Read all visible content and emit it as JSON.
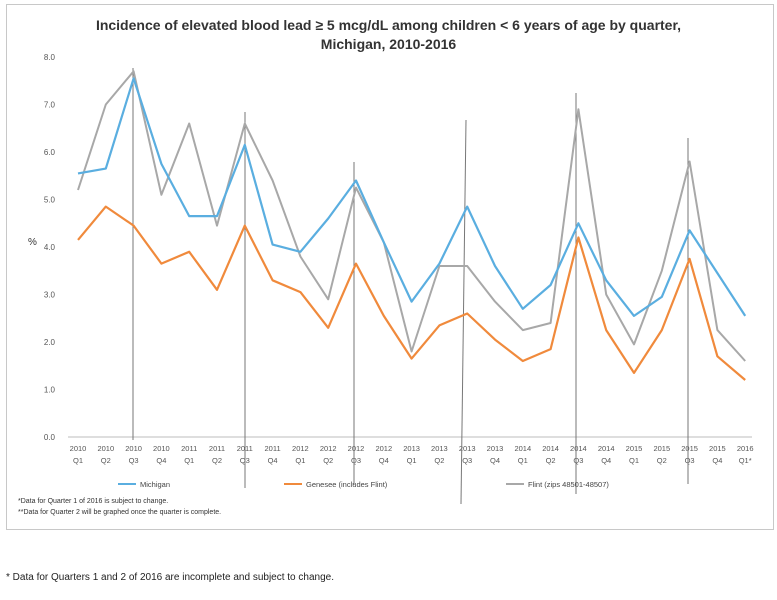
{
  "chart_data": {
    "type": "line",
    "title": "Incidence of elevated blood lead ≥ 5 mcg/dL among children < 6 years of age by quarter,",
    "subtitle": "Michigan, 2010-2016",
    "ylabel": "%",
    "xlabel": "",
    "ylim": [
      0,
      8
    ],
    "yticks": [
      "0.0",
      "1.0",
      "2.0",
      "3.0",
      "4.0",
      "5.0",
      "6.0",
      "7.0",
      "8.0"
    ],
    "grid": false,
    "legend_position": "bottom",
    "categories": [
      [
        "2010",
        "Q1"
      ],
      [
        "2010",
        "Q2"
      ],
      [
        "2010",
        "Q3"
      ],
      [
        "2010",
        "Q4"
      ],
      [
        "2011",
        "Q1"
      ],
      [
        "2011",
        "Q2"
      ],
      [
        "2011",
        "Q3"
      ],
      [
        "2011",
        "Q4"
      ],
      [
        "2012",
        "Q1"
      ],
      [
        "2012",
        "Q2"
      ],
      [
        "2012",
        "Q3"
      ],
      [
        "2012",
        "Q4"
      ],
      [
        "2013",
        "Q1"
      ],
      [
        "2013",
        "Q2"
      ],
      [
        "2013",
        "Q3"
      ],
      [
        "2013",
        "Q4"
      ],
      [
        "2014",
        "Q1"
      ],
      [
        "2014",
        "Q2"
      ],
      [
        "2014",
        "Q3"
      ],
      [
        "2014",
        "Q4"
      ],
      [
        "2015",
        "Q1"
      ],
      [
        "2015",
        "Q2"
      ],
      [
        "2015",
        "Q3"
      ],
      [
        "2015",
        "Q4"
      ],
      [
        "2016",
        "Q1*"
      ]
    ],
    "series": [
      {
        "name": "Michigan",
        "color": "#5aaee0",
        "values": [
          5.55,
          5.65,
          7.55,
          5.75,
          4.65,
          4.65,
          6.15,
          4.05,
          3.9,
          4.6,
          5.4,
          4.1,
          2.85,
          3.65,
          4.85,
          3.6,
          2.7,
          3.2,
          4.5,
          3.3,
          2.55,
          2.95,
          4.35,
          3.45,
          2.55
        ]
      },
      {
        "name": "Genesee (includes Flint)",
        "color": "#f08a3c",
        "values": [
          4.15,
          4.85,
          4.45,
          3.65,
          3.9,
          3.1,
          4.45,
          3.3,
          3.05,
          2.3,
          3.65,
          2.55,
          1.65,
          2.35,
          2.6,
          2.05,
          1.6,
          1.85,
          4.2,
          2.25,
          1.35,
          2.25,
          3.75,
          1.7,
          1.2
        ]
      },
      {
        "name": "Flint (zips 48501-48507)",
        "color": "#a8a8a8",
        "values": [
          5.2,
          7.0,
          7.7,
          5.1,
          6.6,
          4.45,
          6.6,
          5.4,
          3.8,
          2.9,
          5.25,
          4.1,
          1.8,
          3.6,
          3.6,
          2.85,
          2.25,
          2.4,
          6.9,
          3.0,
          1.95,
          3.5,
          5.8,
          2.25,
          1.6
        ]
      }
    ],
    "annotations": [
      "*Data for Quarter 1 of 2016 is subject to change.",
      "**Data for Quarter 2 will be graphed once the quarter is complete."
    ]
  },
  "footnote": "* Data for Quarters 1 and 2 of 2016 are incomplete and subject to change."
}
